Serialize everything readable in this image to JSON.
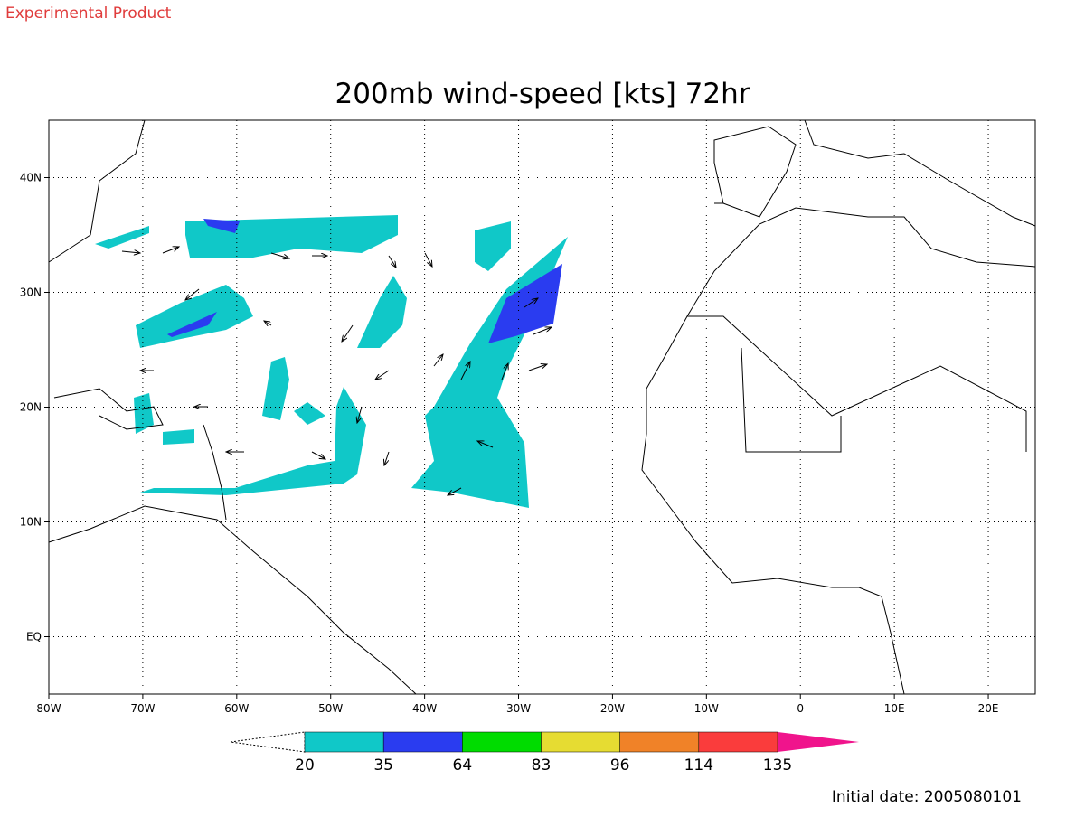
{
  "header": {
    "note": "Experimental Product"
  },
  "title": "200mb wind-speed [kts] 72hr",
  "map": {
    "xlim": [
      -80,
      25
    ],
    "ylim": [
      -5,
      45
    ],
    "lon_ticks": [
      {
        "value": -80,
        "label": "80W"
      },
      {
        "value": -70,
        "label": "70W"
      },
      {
        "value": -60,
        "label": "60W"
      },
      {
        "value": -50,
        "label": "50W"
      },
      {
        "value": -40,
        "label": "40W"
      },
      {
        "value": -30,
        "label": "30W"
      },
      {
        "value": -20,
        "label": "20W"
      },
      {
        "value": -10,
        "label": "10W"
      },
      0,
      {
        "value": 10,
        "label": "10E"
      },
      {
        "value": 20,
        "label": "20E"
      }
    ],
    "lat_ticks": [
      {
        "value": 0,
        "label": "EQ"
      },
      {
        "value": 10,
        "label": "10N"
      },
      {
        "value": 20,
        "label": "20N"
      },
      {
        "value": 30,
        "label": "30N"
      },
      {
        "value": 40,
        "label": "40N"
      }
    ],
    "grid": true
  },
  "legend": {
    "levels": [
      20,
      35,
      64,
      83,
      96,
      114,
      135
    ],
    "colors": [
      "#ffffff",
      "#10c8c8",
      "#2a3cf0",
      "#00dc00",
      "#e6dc32",
      "#f08228",
      "#fa3c3c",
      "#f0148c"
    ]
  },
  "footer": "Initial date: 2005080101"
}
